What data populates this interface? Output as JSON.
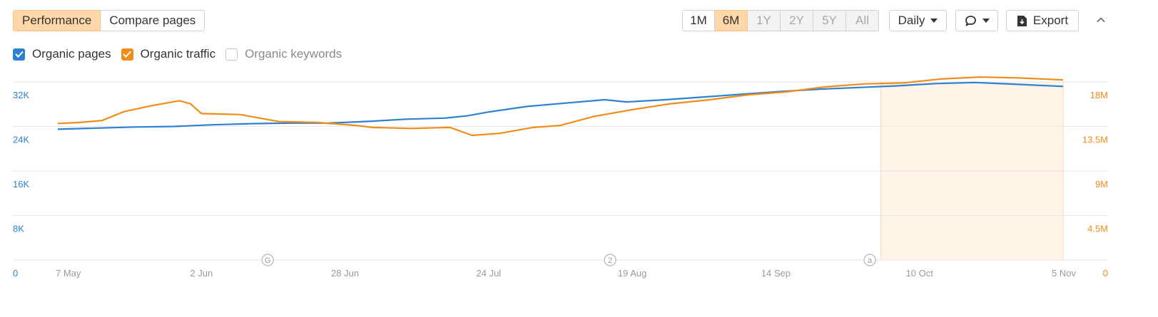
{
  "view_tabs": [
    {
      "label": "Performance",
      "active": true
    },
    {
      "label": "Compare pages",
      "active": false
    }
  ],
  "periods": [
    {
      "label": "1M",
      "state": "normal"
    },
    {
      "label": "6M",
      "state": "active"
    },
    {
      "label": "1Y",
      "state": "disabled"
    },
    {
      "label": "2Y",
      "state": "disabled"
    },
    {
      "label": "5Y",
      "state": "disabled"
    },
    {
      "label": "All",
      "state": "disabled"
    }
  ],
  "interval_label": "Daily",
  "export_label": "Export",
  "icons": {
    "comment": "comment-icon",
    "export": "export-icon",
    "collapse": "chevron-up-icon"
  },
  "legend": [
    {
      "label": "Organic pages",
      "checked": true,
      "color": "#2f80d1"
    },
    {
      "label": "Organic traffic",
      "checked": true,
      "color": "#f08c1a"
    },
    {
      "label": "Organic keywords",
      "checked": false,
      "color": "#c6c6c6"
    }
  ],
  "chart_data": {
    "type": "line",
    "x_ticks": [
      "7 May",
      "2 Jun",
      "28 Jun",
      "24 Jul",
      "19 Aug",
      "14 Sep",
      "10 Oct",
      "5 Nov"
    ],
    "y_left": {
      "ticks": [
        "0",
        "8K",
        "16K",
        "24K",
        "32K"
      ],
      "range": [
        0,
        32000
      ],
      "color": "#2f80d1"
    },
    "y_right": {
      "ticks": [
        "0",
        "4.5M",
        "9M",
        "13.5M",
        "18M"
      ],
      "range": [
        0,
        18000000
      ],
      "color": "#f08c1a"
    },
    "annotations": [
      {
        "symbol": "G",
        "date": "14 Jun"
      },
      {
        "symbol": "2",
        "date": "15 Aug"
      },
      {
        "symbol": "a",
        "date": "1 Oct"
      }
    ],
    "highlight": {
      "from": "3 Oct",
      "to": "5 Nov",
      "color": "#fff4e8"
    },
    "series": [
      {
        "name": "Organic pages",
        "axis": "left",
        "color": "#2f80d1",
        "points": [
          [
            "7 May",
            23500
          ],
          [
            "14 May",
            23700
          ],
          [
            "21 May",
            23900
          ],
          [
            "28 May",
            24000
          ],
          [
            "4 Jun",
            24300
          ],
          [
            "11 Jun",
            24500
          ],
          [
            "18 Jun",
            24600
          ],
          [
            "25 Jun",
            24600
          ],
          [
            "2 Jul",
            24900
          ],
          [
            "9 Jul",
            25300
          ],
          [
            "16 Jul",
            25500
          ],
          [
            "20 Jul",
            25900
          ],
          [
            "24 Jul",
            26600
          ],
          [
            "31 Jul",
            27600
          ],
          [
            "7 Aug",
            28200
          ],
          [
            "14 Aug",
            28800
          ],
          [
            "18 Aug",
            28400
          ],
          [
            "25 Aug",
            28800
          ],
          [
            "1 Sep",
            29300
          ],
          [
            "8 Sep",
            29800
          ],
          [
            "15 Sep",
            30300
          ],
          [
            "22 Sep",
            30700
          ],
          [
            "29 Sep",
            31000
          ],
          [
            "6 Oct",
            31300
          ],
          [
            "13 Oct",
            31700
          ],
          [
            "20 Oct",
            31900
          ],
          [
            "27 Oct",
            31600
          ],
          [
            "5 Nov",
            31200
          ]
        ]
      },
      {
        "name": "Organic traffic",
        "axis": "right",
        "color": "#f08c1a",
        "points": [
          [
            "7 May",
            13800000
          ],
          [
            "11 May",
            13900000
          ],
          [
            "15 May",
            14100000
          ],
          [
            "19 May",
            15000000
          ],
          [
            "24 May",
            15600000
          ],
          [
            "29 May",
            16100000
          ],
          [
            "31 May",
            15800000
          ],
          [
            "2 Jun",
            14800000
          ],
          [
            "9 Jun",
            14700000
          ],
          [
            "16 Jun",
            14000000
          ],
          [
            "23 Jun",
            13900000
          ],
          [
            "30 Jun",
            13600000
          ],
          [
            "3 Jul",
            13400000
          ],
          [
            "10 Jul",
            13300000
          ],
          [
            "17 Jul",
            13400000
          ],
          [
            "21 Jul",
            12600000
          ],
          [
            "26 Jul",
            12800000
          ],
          [
            "1 Aug",
            13400000
          ],
          [
            "6 Aug",
            13600000
          ],
          [
            "12 Aug",
            14500000
          ],
          [
            "19 Aug",
            15200000
          ],
          [
            "26 Aug",
            15800000
          ],
          [
            "2 Sep",
            16200000
          ],
          [
            "9 Sep",
            16700000
          ],
          [
            "16 Sep",
            17000000
          ],
          [
            "23 Sep",
            17500000
          ],
          [
            "30 Sep",
            17800000
          ],
          [
            "7 Oct",
            17900000
          ],
          [
            "14 Oct",
            18300000
          ],
          [
            "21 Oct",
            18500000
          ],
          [
            "28 Oct",
            18400000
          ],
          [
            "5 Nov",
            18200000
          ]
        ]
      }
    ]
  }
}
